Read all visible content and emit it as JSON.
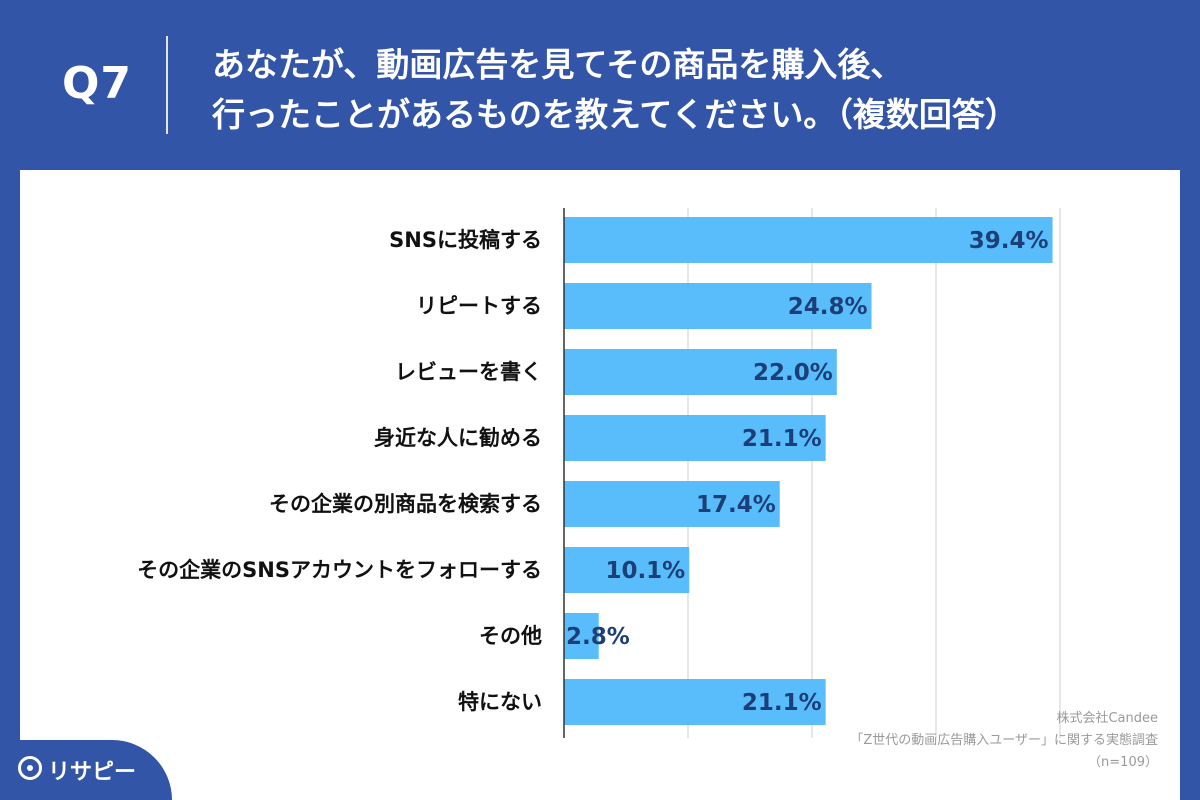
{
  "header": {
    "q_number": "Q7",
    "question_line1": "あなたが、動画広告を見てその商品を購入後、",
    "question_line2": "行ったことがあるものを教えてください。（複数回答）"
  },
  "chart_data": {
    "type": "bar",
    "orientation": "horizontal",
    "categories": [
      "SNSに投稿する",
      "リピートする",
      "レビューを書く",
      "身近な人に勧める",
      "その企業の別商品を検索する",
      "その企業のSNSアカウントをフォローする",
      "その他",
      "特にない"
    ],
    "values": [
      39.4,
      24.8,
      22.0,
      21.1,
      17.4,
      10.1,
      2.8,
      21.1
    ],
    "value_labels": [
      "39.4%",
      "24.8%",
      "22.0%",
      "21.1%",
      "17.4%",
      "10.1%",
      "2.8%",
      "21.1%"
    ],
    "xlim": [
      0,
      40
    ],
    "grid": true,
    "bar_color": "#58bdfa",
    "label_color": "#1c3f78"
  },
  "source": {
    "line1": "株式会社Candee",
    "line2": "「Z世代の動画広告購入ユーザー」に関する実態調査",
    "line3": "（n=109）"
  },
  "logo": {
    "text": "リサピー",
    "icon": "pin-icon"
  },
  "colors": {
    "header_bg": "#3355a8",
    "panel_bg": "#ffffff"
  }
}
